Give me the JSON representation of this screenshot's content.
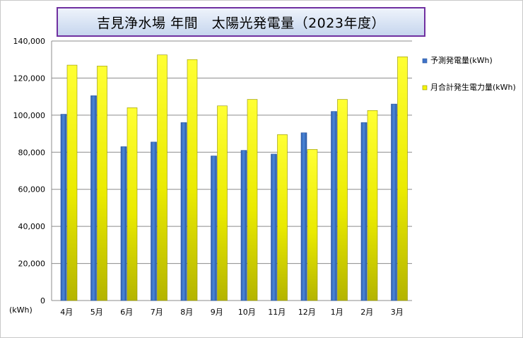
{
  "chart_data": {
    "type": "bar",
    "title": "吉見浄水場 年間　太陽光発電量（2023年度）",
    "xlabel": "",
    "ylabel": "",
    "unit_label": "(kWh)",
    "ylim": [
      0,
      140000
    ],
    "yticks": [
      "0",
      "20,000",
      "40,000",
      "60,000",
      "80,000",
      "100,000",
      "120,000",
      "140,000"
    ],
    "grid": true,
    "legend_position": "right",
    "categories": [
      "4月",
      "5月",
      "6月",
      "7月",
      "8月",
      "9月",
      "10月",
      "11月",
      "12月",
      "1月",
      "2月",
      "3月"
    ],
    "series": [
      {
        "name": "予測発電量(kWh)",
        "color": "#3f73c8",
        "values": [
          100500,
          110500,
          83000,
          85500,
          96000,
          78000,
          81000,
          79000,
          90500,
          102000,
          96000,
          106000
        ]
      },
      {
        "name": "月合計発生電力量(kWh)",
        "color": "#f5f500",
        "values": [
          127000,
          126500,
          104000,
          132500,
          130000,
          105000,
          108500,
          89500,
          81500,
          108500,
          102500,
          131500
        ]
      }
    ]
  }
}
